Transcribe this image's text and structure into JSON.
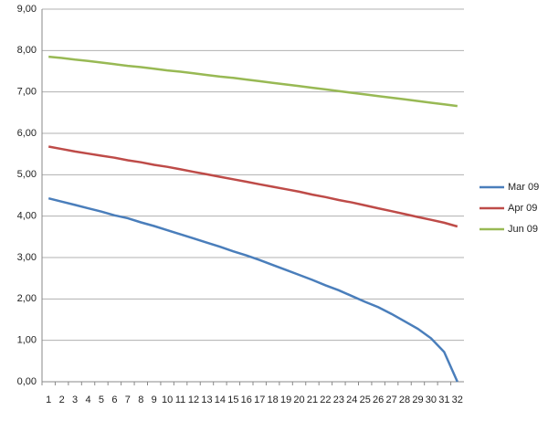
{
  "chart_data": {
    "type": "line",
    "categories": [
      "1",
      "2",
      "3",
      "4",
      "5",
      "6",
      "7",
      "8",
      "9",
      "10",
      "11",
      "12",
      "13",
      "14",
      "15",
      "16",
      "17",
      "18",
      "19",
      "20",
      "21",
      "22",
      "23",
      "24",
      "25",
      "26",
      "27",
      "28",
      "29",
      "30",
      "31",
      "32"
    ],
    "series": [
      {
        "name": "Mar 09",
        "color": "#4a7ebb",
        "values": [
          4.43,
          4.35,
          4.27,
          4.19,
          4.11,
          4.02,
          3.95,
          3.85,
          3.76,
          3.66,
          3.56,
          3.46,
          3.36,
          3.26,
          3.15,
          3.05,
          2.94,
          2.82,
          2.7,
          2.58,
          2.46,
          2.33,
          2.21,
          2.07,
          1.93,
          1.8,
          1.64,
          1.46,
          1.28,
          1.05,
          0.72,
          0.0
        ]
      },
      {
        "name": "Apr 09",
        "color": "#be4b48",
        "values": [
          5.68,
          5.62,
          5.56,
          5.51,
          5.46,
          5.41,
          5.35,
          5.3,
          5.24,
          5.19,
          5.13,
          5.07,
          5.01,
          4.95,
          4.89,
          4.83,
          4.77,
          4.71,
          4.65,
          4.59,
          4.52,
          4.46,
          4.39,
          4.33,
          4.26,
          4.19,
          4.12,
          4.05,
          3.98,
          3.91,
          3.84,
          3.75
        ]
      },
      {
        "name": "Jun 09",
        "color": "#98b954",
        "values": [
          7.85,
          7.82,
          7.78,
          7.75,
          7.71,
          7.67,
          7.63,
          7.6,
          7.56,
          7.52,
          7.49,
          7.45,
          7.41,
          7.37,
          7.34,
          7.3,
          7.26,
          7.22,
          7.18,
          7.14,
          7.1,
          7.06,
          7.02,
          6.98,
          6.94,
          6.9,
          6.86,
          6.82,
          6.78,
          6.74,
          6.7,
          6.66
        ]
      }
    ],
    "ylim": [
      0,
      9
    ],
    "yticks": [
      {
        "value": 0,
        "label": "0,00"
      },
      {
        "value": 1,
        "label": "1,00"
      },
      {
        "value": 2,
        "label": "2,00"
      },
      {
        "value": 3,
        "label": "3,00"
      },
      {
        "value": 4,
        "label": "4,00"
      },
      {
        "value": 5,
        "label": "5,00"
      },
      {
        "value": 6,
        "label": "6,00"
      },
      {
        "value": 7,
        "label": "7,00"
      },
      {
        "value": 8,
        "label": "8,00"
      },
      {
        "value": 9,
        "label": "9,00"
      }
    ],
    "grid": true,
    "legend": "right"
  }
}
